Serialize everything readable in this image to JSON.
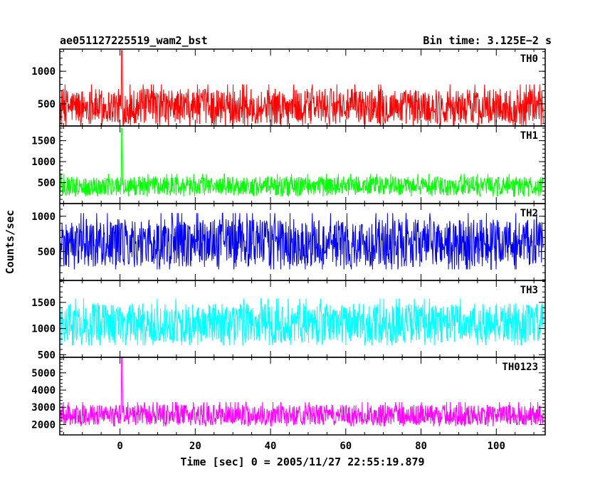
{
  "chart_data": {
    "type": "line",
    "title_left": "ae051127225519_wam2_bst",
    "title_right": "Bin time: 3.125E−2 s",
    "xlabel": "Time [sec] 0 = 2005/11/27 22:55:19.879",
    "ylabel": "Counts/sec",
    "xlim": [
      -16,
      113
    ],
    "x_ticks": [
      0,
      20,
      40,
      60,
      80,
      100
    ],
    "x_tick_labels": [
      "0",
      "20",
      "40",
      "60",
      "80",
      "100"
    ],
    "data_x_range": [
      -16,
      112.5
    ],
    "grid": false,
    "panels": [
      {
        "name": "TH0",
        "color": "#ff0000",
        "ylim": [
          160,
          1340
        ],
        "y_ticks": [
          500,
          1000
        ],
        "y_tick_labels": [
          "500",
          "1000"
        ],
        "baseline": 460,
        "noise_amplitude": 270,
        "burst": {
          "x": 0.5,
          "peak": 1320
        }
      },
      {
        "name": "TH1",
        "color": "#00ff00",
        "ylim": [
          0,
          1850
        ],
        "y_ticks": [
          500,
          1000,
          1500
        ],
        "y_tick_labels": [
          "500",
          "1000",
          "1500"
        ],
        "baseline": 420,
        "noise_amplitude": 230,
        "burst": {
          "x": 0.5,
          "peak": 1800
        }
      },
      {
        "name": "TH2",
        "color": "#0000ff",
        "ylim": [
          90,
          1180
        ],
        "y_ticks": [
          500,
          1000
        ],
        "y_tick_labels": [
          "500",
          "1000"
        ],
        "baseline": 620,
        "noise_amplitude": 340,
        "burst": {
          "x": 0.5,
          "peak": 900
        }
      },
      {
        "name": "TH3",
        "color": "#00ffff",
        "ylim": [
          450,
          1920
        ],
        "y_ticks": [
          500,
          1000,
          1500
        ],
        "y_tick_labels": [
          "500",
          "1000",
          "1500"
        ],
        "baseline": 1100,
        "noise_amplitude": 380,
        "burst": {
          "x": 0.5,
          "peak": 1300
        }
      },
      {
        "name": "TH0123",
        "color": "#ff00ff",
        "ylim": [
          1400,
          5900
        ],
        "y_ticks": [
          2000,
          3000,
          4000,
          5000
        ],
        "y_tick_labels": [
          "2000",
          "3000",
          "4000",
          "5000"
        ],
        "baseline": 2550,
        "noise_amplitude": 600,
        "burst": {
          "x": 0.5,
          "peak": 5850
        }
      }
    ]
  }
}
